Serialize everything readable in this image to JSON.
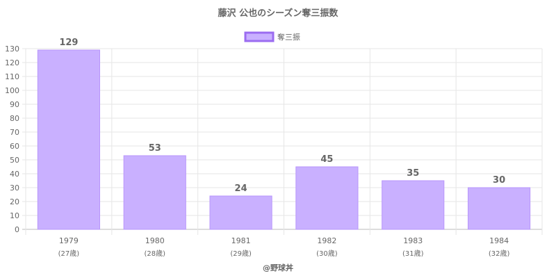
{
  "chart_data": {
    "type": "bar",
    "title": "藤沢 公也のシーズン奪三振数",
    "series": [
      {
        "name": "奪三振",
        "values": [
          129,
          53,
          24,
          45,
          35,
          30
        ]
      }
    ],
    "categories": [
      "1979",
      "1980",
      "1981",
      "1982",
      "1983",
      "1984"
    ],
    "category_sublabels": [
      "(27歳)",
      "(28歳)",
      "(29歳)",
      "(30歳)",
      "(31歳)",
      "(32歳)"
    ],
    "ylim": [
      0,
      130
    ],
    "yticks": [
      0,
      10,
      20,
      30,
      40,
      50,
      60,
      70,
      80,
      90,
      100,
      110,
      120,
      130
    ],
    "grid": true,
    "legend_position": "top",
    "colors": {
      "bar_fill": "#c9b0ff",
      "bar_border": "#b896fb",
      "legend_border": "#9b6cf0",
      "grid": "#e6e6e6",
      "text": "#666666"
    },
    "footer": "@野球丼"
  }
}
